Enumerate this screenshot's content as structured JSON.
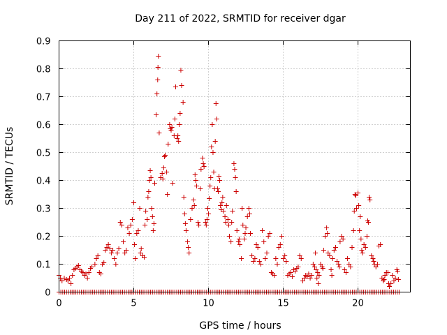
{
  "chart_data": {
    "type": "scatter",
    "title": "Day 211 of 2022, SRMTID for receiver dgar",
    "xlabel": "GPS time / hours",
    "ylabel": "SRMTID / TECUs",
    "xlim": [
      0,
      23.5
    ],
    "ylim": [
      0,
      0.9
    ],
    "xticks": [
      0,
      5,
      10,
      15,
      20
    ],
    "yticks": [
      0,
      0.1,
      0.2,
      0.3,
      0.4,
      0.5,
      0.6,
      0.7,
      0.8,
      0.9
    ],
    "grid": true,
    "marker": "plus",
    "color": "#cc0000",
    "zero_baseline": {
      "x_start": 0.0,
      "x_end": 22.8,
      "step": 0.125,
      "y": 0
    },
    "series": [
      {
        "name": "SRMTID",
        "points": [
          [
            0.0,
            0.06
          ],
          [
            0.1,
            0.05
          ],
          [
            0.2,
            0.04
          ],
          [
            0.35,
            0.05
          ],
          [
            0.5,
            0.045
          ],
          [
            0.6,
            0.04
          ],
          [
            0.7,
            0.05
          ],
          [
            0.8,
            0.03
          ],
          [
            0.9,
            0.06
          ],
          [
            1.0,
            0.08
          ],
          [
            1.1,
            0.085
          ],
          [
            1.2,
            0.09
          ],
          [
            1.3,
            0.095
          ],
          [
            1.4,
            0.08
          ],
          [
            1.5,
            0.075
          ],
          [
            1.6,
            0.07
          ],
          [
            1.7,
            0.06
          ],
          [
            1.8,
            0.065
          ],
          [
            1.9,
            0.05
          ],
          [
            2.0,
            0.07
          ],
          [
            2.1,
            0.085
          ],
          [
            2.2,
            0.09
          ],
          [
            2.4,
            0.1
          ],
          [
            2.5,
            0.12
          ],
          [
            2.6,
            0.13
          ],
          [
            2.7,
            0.07
          ],
          [
            2.8,
            0.065
          ],
          [
            2.9,
            0.1
          ],
          [
            3.0,
            0.105
          ],
          [
            3.1,
            0.15
          ],
          [
            3.2,
            0.16
          ],
          [
            3.3,
            0.17
          ],
          [
            3.4,
            0.155
          ],
          [
            3.5,
            0.14
          ],
          [
            3.6,
            0.15
          ],
          [
            3.7,
            0.12
          ],
          [
            3.8,
            0.1
          ],
          [
            3.9,
            0.14
          ],
          [
            4.0,
            0.155
          ],
          [
            4.1,
            0.25
          ],
          [
            4.2,
            0.24
          ],
          [
            4.3,
            0.18
          ],
          [
            4.4,
            0.14
          ],
          [
            4.5,
            0.15
          ],
          [
            4.6,
            0.23
          ],
          [
            4.7,
            0.21
          ],
          [
            4.8,
            0.24
          ],
          [
            4.9,
            0.26
          ],
          [
            5.0,
            0.32
          ],
          [
            5.05,
            0.17
          ],
          [
            5.1,
            0.12
          ],
          [
            5.2,
            0.21
          ],
          [
            5.3,
            0.22
          ],
          [
            5.4,
            0.3
          ],
          [
            5.45,
            0.14
          ],
          [
            5.5,
            0.155
          ],
          [
            5.6,
            0.13
          ],
          [
            5.7,
            0.125
          ],
          [
            5.75,
            0.24
          ],
          [
            5.8,
            0.29
          ],
          [
            5.9,
            0.26
          ],
          [
            5.95,
            0.34
          ],
          [
            6.0,
            0.36
          ],
          [
            6.05,
            0.4
          ],
          [
            6.1,
            0.435
          ],
          [
            6.15,
            0.41
          ],
          [
            6.2,
            0.3
          ],
          [
            6.25,
            0.27
          ],
          [
            6.3,
            0.22
          ],
          [
            6.35,
            0.245
          ],
          [
            6.4,
            0.39
          ],
          [
            6.5,
            0.635
          ],
          [
            6.55,
            0.71
          ],
          [
            6.6,
            0.76
          ],
          [
            6.62,
            0.805
          ],
          [
            6.65,
            0.845
          ],
          [
            6.7,
            0.57
          ],
          [
            6.8,
            0.41
          ],
          [
            6.9,
            0.425
          ],
          [
            6.95,
            0.405
          ],
          [
            7.0,
            0.445
          ],
          [
            7.05,
            0.485
          ],
          [
            7.1,
            0.49
          ],
          [
            7.2,
            0.43
          ],
          [
            7.25,
            0.35
          ],
          [
            7.3,
            0.53
          ],
          [
            7.4,
            0.6
          ],
          [
            7.45,
            0.585
          ],
          [
            7.5,
            0.58
          ],
          [
            7.55,
            0.59
          ],
          [
            7.6,
            0.39
          ],
          [
            7.7,
            0.56
          ],
          [
            7.75,
            0.62
          ],
          [
            7.8,
            0.735
          ],
          [
            7.9,
            0.55
          ],
          [
            7.95,
            0.56
          ],
          [
            8.0,
            0.54
          ],
          [
            8.05,
            0.6
          ],
          [
            8.1,
            0.64
          ],
          [
            8.15,
            0.795
          ],
          [
            8.2,
            0.74
          ],
          [
            8.3,
            0.68
          ],
          [
            8.35,
            0.34
          ],
          [
            8.4,
            0.28
          ],
          [
            8.45,
            0.245
          ],
          [
            8.5,
            0.22
          ],
          [
            8.6,
            0.18
          ],
          [
            8.65,
            0.16
          ],
          [
            8.7,
            0.14
          ],
          [
            8.8,
            0.26
          ],
          [
            8.9,
            0.3
          ],
          [
            9.0,
            0.33
          ],
          [
            9.05,
            0.31
          ],
          [
            9.1,
            0.42
          ],
          [
            9.15,
            0.4
          ],
          [
            9.2,
            0.38
          ],
          [
            9.3,
            0.25
          ],
          [
            9.35,
            0.24
          ],
          [
            9.45,
            0.37
          ],
          [
            9.5,
            0.44
          ],
          [
            9.6,
            0.48
          ],
          [
            9.65,
            0.46
          ],
          [
            9.7,
            0.45
          ],
          [
            9.8,
            0.25
          ],
          [
            9.85,
            0.24
          ],
          [
            9.9,
            0.26
          ],
          [
            9.95,
            0.3
          ],
          [
            10.0,
            0.28
          ],
          [
            10.05,
            0.335
          ],
          [
            10.1,
            0.38
          ],
          [
            10.15,
            0.41
          ],
          [
            10.2,
            0.52
          ],
          [
            10.25,
            0.6
          ],
          [
            10.3,
            0.5
          ],
          [
            10.35,
            0.43
          ],
          [
            10.4,
            0.37
          ],
          [
            10.45,
            0.54
          ],
          [
            10.5,
            0.675
          ],
          [
            10.55,
            0.62
          ],
          [
            10.6,
            0.37
          ],
          [
            10.65,
            0.36
          ],
          [
            10.7,
            0.415
          ],
          [
            10.75,
            0.4
          ],
          [
            10.8,
            0.31
          ],
          [
            10.85,
            0.295
          ],
          [
            10.9,
            0.32
          ],
          [
            10.95,
            0.34
          ],
          [
            11.0,
            0.29
          ],
          [
            11.1,
            0.27
          ],
          [
            11.15,
            0.25
          ],
          [
            11.2,
            0.31
          ],
          [
            11.3,
            0.26
          ],
          [
            11.35,
            0.24
          ],
          [
            11.4,
            0.2
          ],
          [
            11.5,
            0.18
          ],
          [
            11.55,
            0.25
          ],
          [
            11.6,
            0.29
          ],
          [
            11.7,
            0.46
          ],
          [
            11.75,
            0.44
          ],
          [
            11.8,
            0.41
          ],
          [
            11.85,
            0.36
          ],
          [
            11.9,
            0.22
          ],
          [
            12.0,
            0.18
          ],
          [
            12.05,
            0.19
          ],
          [
            12.1,
            0.17
          ],
          [
            12.2,
            0.12
          ],
          [
            12.25,
            0.3
          ],
          [
            12.3,
            0.24
          ],
          [
            12.4,
            0.19
          ],
          [
            12.45,
            0.21
          ],
          [
            12.5,
            0.23
          ],
          [
            12.6,
            0.27
          ],
          [
            12.7,
            0.3
          ],
          [
            12.75,
            0.28
          ],
          [
            12.8,
            0.21
          ],
          [
            12.9,
            0.13
          ],
          [
            13.0,
            0.11
          ],
          [
            13.1,
            0.12
          ],
          [
            13.2,
            0.17
          ],
          [
            13.3,
            0.16
          ],
          [
            13.4,
            0.11
          ],
          [
            13.5,
            0.1
          ],
          [
            13.6,
            0.22
          ],
          [
            13.7,
            0.18
          ],
          [
            13.8,
            0.12
          ],
          [
            13.9,
            0.14
          ],
          [
            14.0,
            0.2
          ],
          [
            14.1,
            0.21
          ],
          [
            14.2,
            0.07
          ],
          [
            14.3,
            0.065
          ],
          [
            14.4,
            0.06
          ],
          [
            14.5,
            0.12
          ],
          [
            14.6,
            0.1
          ],
          [
            14.7,
            0.16
          ],
          [
            14.8,
            0.17
          ],
          [
            14.9,
            0.2
          ],
          [
            15.0,
            0.12
          ],
          [
            15.1,
            0.13
          ],
          [
            15.2,
            0.11
          ],
          [
            15.3,
            0.06
          ],
          [
            15.4,
            0.065
          ],
          [
            15.5,
            0.07
          ],
          [
            15.6,
            0.055
          ],
          [
            15.7,
            0.08
          ],
          [
            15.8,
            0.075
          ],
          [
            15.9,
            0.085
          ],
          [
            16.0,
            0.09
          ],
          [
            16.1,
            0.13
          ],
          [
            16.2,
            0.12
          ],
          [
            16.3,
            0.04
          ],
          [
            16.4,
            0.05
          ],
          [
            16.5,
            0.06
          ],
          [
            16.6,
            0.055
          ],
          [
            16.7,
            0.065
          ],
          [
            16.8,
            0.05
          ],
          [
            16.9,
            0.06
          ],
          [
            17.0,
            0.1
          ],
          [
            17.1,
            0.09
          ],
          [
            17.15,
            0.14
          ],
          [
            17.2,
            0.08
          ],
          [
            17.25,
            0.05
          ],
          [
            17.3,
            0.07
          ],
          [
            17.35,
            0.03
          ],
          [
            17.4,
            0.06
          ],
          [
            17.5,
            0.1
          ],
          [
            17.6,
            0.09
          ],
          [
            17.65,
            0.085
          ],
          [
            17.7,
            0.15
          ],
          [
            17.8,
            0.2
          ],
          [
            17.9,
            0.23
          ],
          [
            17.95,
            0.21
          ],
          [
            18.0,
            0.14
          ],
          [
            18.1,
            0.13
          ],
          [
            18.2,
            0.08
          ],
          [
            18.25,
            0.06
          ],
          [
            18.3,
            0.12
          ],
          [
            18.4,
            0.15
          ],
          [
            18.5,
            0.16
          ],
          [
            18.6,
            0.11
          ],
          [
            18.7,
            0.1
          ],
          [
            18.75,
            0.09
          ],
          [
            18.8,
            0.18
          ],
          [
            18.9,
            0.2
          ],
          [
            19.0,
            0.19
          ],
          [
            19.1,
            0.08
          ],
          [
            19.2,
            0.07
          ],
          [
            19.3,
            0.12
          ],
          [
            19.4,
            0.1
          ],
          [
            19.5,
            0.09
          ],
          [
            19.6,
            0.16
          ],
          [
            19.7,
            0.22
          ],
          [
            19.75,
            0.29
          ],
          [
            19.8,
            0.35
          ],
          [
            19.85,
            0.345
          ],
          [
            19.9,
            0.3
          ],
          [
            20.0,
            0.355
          ],
          [
            20.05,
            0.31
          ],
          [
            20.1,
            0.22
          ],
          [
            20.15,
            0.27
          ],
          [
            20.2,
            0.19
          ],
          [
            20.25,
            0.15
          ],
          [
            20.3,
            0.14
          ],
          [
            20.4,
            0.17
          ],
          [
            20.5,
            0.16
          ],
          [
            20.6,
            0.2
          ],
          [
            20.65,
            0.255
          ],
          [
            20.7,
            0.25
          ],
          [
            20.75,
            0.34
          ],
          [
            20.8,
            0.33
          ],
          [
            20.9,
            0.13
          ],
          [
            21.0,
            0.12
          ],
          [
            21.05,
            0.11
          ],
          [
            21.1,
            0.1
          ],
          [
            21.2,
            0.09
          ],
          [
            21.3,
            0.1
          ],
          [
            21.4,
            0.165
          ],
          [
            21.5,
            0.17
          ],
          [
            21.6,
            0.05
          ],
          [
            21.7,
            0.04
          ],
          [
            21.75,
            0.045
          ],
          [
            21.8,
            0.06
          ],
          [
            21.9,
            0.07
          ],
          [
            22.0,
            0.07
          ],
          [
            22.05,
            0.03
          ],
          [
            22.1,
            0.02
          ],
          [
            22.2,
            0.03
          ],
          [
            22.3,
            0.06
          ],
          [
            22.4,
            0.04
          ],
          [
            22.5,
            0.05
          ],
          [
            22.6,
            0.08
          ],
          [
            22.65,
            0.075
          ],
          [
            22.7,
            0.045
          ]
        ]
      }
    ]
  }
}
